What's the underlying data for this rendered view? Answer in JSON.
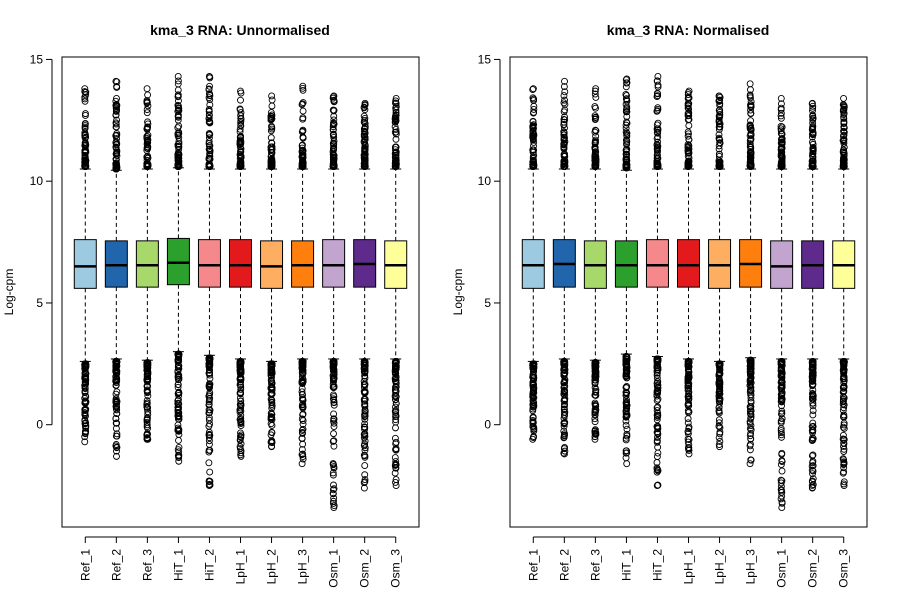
{
  "chart_data": [
    {
      "type": "boxplot",
      "title": "kma_3 RNA: Unnormalised",
      "ylabel": "Log-cpm",
      "xlabel": "",
      "ylim": [
        -4.2,
        15.1
      ],
      "yticks": [
        0,
        5,
        10,
        15
      ],
      "categories": [
        "Ref_1",
        "Ref_2",
        "Ref_3",
        "HiT_1",
        "HiT_2",
        "LpH_1",
        "LpH_2",
        "LpH_3",
        "Osm_1",
        "Osm_2",
        "Osm_3"
      ],
      "colors": [
        "#9ecae1",
        "#2166ac",
        "#a6d96a",
        "#2ca02c",
        "#f4888a",
        "#e31a1c",
        "#fdae61",
        "#ff7f0e",
        "#c2a5cf",
        "#5e2b8c",
        "#ffff99"
      ],
      "boxes": [
        {
          "q1": 5.6,
          "median": 6.5,
          "q3": 7.6,
          "whisker_low": 2.6,
          "whisker_high": 10.5,
          "outlier_low_max": 2.5,
          "outlier_low_min": -0.7,
          "outlier_high_min": 10.6,
          "outlier_high_max": 13.8
        },
        {
          "q1": 5.65,
          "median": 6.55,
          "q3": 7.55,
          "whisker_low": 2.7,
          "whisker_high": 10.45,
          "outlier_low_max": 2.6,
          "outlier_low_min": -1.3,
          "outlier_high_min": 10.5,
          "outlier_high_max": 14.1
        },
        {
          "q1": 5.65,
          "median": 6.55,
          "q3": 7.55,
          "whisker_low": 2.65,
          "whisker_high": 10.5,
          "outlier_low_max": 2.55,
          "outlier_low_min": -0.6,
          "outlier_high_min": 10.6,
          "outlier_high_max": 13.8
        },
        {
          "q1": 5.75,
          "median": 6.65,
          "q3": 7.65,
          "whisker_low": 3.0,
          "whisker_high": 10.55,
          "outlier_low_max": 2.9,
          "outlier_low_min": -1.5,
          "outlier_high_min": 10.6,
          "outlier_high_max": 14.3
        },
        {
          "q1": 5.65,
          "median": 6.55,
          "q3": 7.6,
          "whisker_low": 2.85,
          "whisker_high": 10.5,
          "outlier_low_max": 2.75,
          "outlier_low_min": -2.5,
          "outlier_high_min": 10.6,
          "outlier_high_max": 14.3
        },
        {
          "q1": 5.65,
          "median": 6.55,
          "q3": 7.6,
          "whisker_low": 2.7,
          "whisker_high": 10.5,
          "outlier_low_max": 2.6,
          "outlier_low_min": -1.3,
          "outlier_high_min": 10.6,
          "outlier_high_max": 13.7
        },
        {
          "q1": 5.6,
          "median": 6.5,
          "q3": 7.55,
          "whisker_low": 2.6,
          "whisker_high": 10.5,
          "outlier_low_max": 2.5,
          "outlier_low_min": -0.9,
          "outlier_high_min": 10.6,
          "outlier_high_max": 13.5
        },
        {
          "q1": 5.65,
          "median": 6.55,
          "q3": 7.55,
          "whisker_low": 2.7,
          "whisker_high": 10.5,
          "outlier_low_max": 2.6,
          "outlier_low_min": -1.6,
          "outlier_high_min": 10.6,
          "outlier_high_max": 13.9
        },
        {
          "q1": 5.65,
          "median": 6.55,
          "q3": 7.6,
          "whisker_low": 2.7,
          "whisker_high": 10.5,
          "outlier_low_max": 2.6,
          "outlier_low_min": -3.4,
          "outlier_high_min": 10.6,
          "outlier_high_max": 13.5
        },
        {
          "q1": 5.65,
          "median": 6.6,
          "q3": 7.6,
          "whisker_low": 2.7,
          "whisker_high": 10.5,
          "outlier_low_max": 2.6,
          "outlier_low_min": -2.6,
          "outlier_high_min": 10.6,
          "outlier_high_max": 13.2
        },
        {
          "q1": 5.6,
          "median": 6.55,
          "q3": 7.55,
          "whisker_low": 2.7,
          "whisker_high": 10.5,
          "outlier_low_max": 2.6,
          "outlier_low_min": -2.5,
          "outlier_high_min": 10.6,
          "outlier_high_max": 13.4
        }
      ]
    },
    {
      "type": "boxplot",
      "title": "kma_3 RNA: Normalised",
      "ylabel": "Log-cpm",
      "xlabel": "",
      "ylim": [
        -4.2,
        15.1
      ],
      "yticks": [
        0,
        5,
        10,
        15
      ],
      "categories": [
        "Ref_1",
        "Ref_2",
        "Ref_3",
        "HiT_1",
        "HiT_2",
        "LpH_1",
        "LpH_2",
        "LpH_3",
        "Osm_1",
        "Osm_2",
        "Osm_3"
      ],
      "colors": [
        "#9ecae1",
        "#2166ac",
        "#a6d96a",
        "#2ca02c",
        "#f4888a",
        "#e31a1c",
        "#fdae61",
        "#ff7f0e",
        "#c2a5cf",
        "#5e2b8c",
        "#ffff99"
      ],
      "boxes": [
        {
          "q1": 5.6,
          "median": 6.55,
          "q3": 7.6,
          "whisker_low": 2.6,
          "whisker_high": 10.5,
          "outlier_low_max": 2.5,
          "outlier_low_min": -0.6,
          "outlier_high_min": 10.6,
          "outlier_high_max": 13.8
        },
        {
          "q1": 5.65,
          "median": 6.6,
          "q3": 7.6,
          "whisker_low": 2.7,
          "whisker_high": 10.5,
          "outlier_low_max": 2.6,
          "outlier_low_min": -1.2,
          "outlier_high_min": 10.6,
          "outlier_high_max": 14.1
        },
        {
          "q1": 5.6,
          "median": 6.55,
          "q3": 7.55,
          "whisker_low": 2.65,
          "whisker_high": 10.5,
          "outlier_low_max": 2.55,
          "outlier_low_min": -0.6,
          "outlier_high_min": 10.6,
          "outlier_high_max": 13.8
        },
        {
          "q1": 5.65,
          "median": 6.55,
          "q3": 7.55,
          "whisker_low": 2.9,
          "whisker_high": 10.45,
          "outlier_low_max": 2.8,
          "outlier_low_min": -1.6,
          "outlier_high_min": 10.55,
          "outlier_high_max": 14.2
        },
        {
          "q1": 5.65,
          "median": 6.55,
          "q3": 7.6,
          "whisker_low": 2.8,
          "whisker_high": 10.5,
          "outlier_low_max": 2.7,
          "outlier_low_min": -2.5,
          "outlier_high_min": 10.6,
          "outlier_high_max": 14.3
        },
        {
          "q1": 5.65,
          "median": 6.55,
          "q3": 7.6,
          "whisker_low": 2.7,
          "whisker_high": 10.5,
          "outlier_low_max": 2.6,
          "outlier_low_min": -1.2,
          "outlier_high_min": 10.6,
          "outlier_high_max": 13.7
        },
        {
          "q1": 5.6,
          "median": 6.55,
          "q3": 7.6,
          "whisker_low": 2.6,
          "whisker_high": 10.5,
          "outlier_low_max": 2.5,
          "outlier_low_min": -0.9,
          "outlier_high_min": 10.6,
          "outlier_high_max": 13.5
        },
        {
          "q1": 5.65,
          "median": 6.6,
          "q3": 7.6,
          "whisker_low": 2.75,
          "whisker_high": 10.5,
          "outlier_low_max": 2.65,
          "outlier_low_min": -1.6,
          "outlier_high_min": 10.6,
          "outlier_high_max": 14.0
        },
        {
          "q1": 5.6,
          "median": 6.5,
          "q3": 7.55,
          "whisker_low": 2.7,
          "whisker_high": 10.5,
          "outlier_low_max": 2.6,
          "outlier_low_min": -3.4,
          "outlier_high_min": 10.6,
          "outlier_high_max": 13.4
        },
        {
          "q1": 5.6,
          "median": 6.55,
          "q3": 7.55,
          "whisker_low": 2.7,
          "whisker_high": 10.5,
          "outlier_low_max": 2.6,
          "outlier_low_min": -2.6,
          "outlier_high_min": 10.6,
          "outlier_high_max": 13.2
        },
        {
          "q1": 5.6,
          "median": 6.55,
          "q3": 7.55,
          "whisker_low": 2.7,
          "whisker_high": 10.5,
          "outlier_low_max": 2.6,
          "outlier_low_min": -2.5,
          "outlier_high_min": 10.6,
          "outlier_high_max": 13.4
        }
      ]
    }
  ]
}
